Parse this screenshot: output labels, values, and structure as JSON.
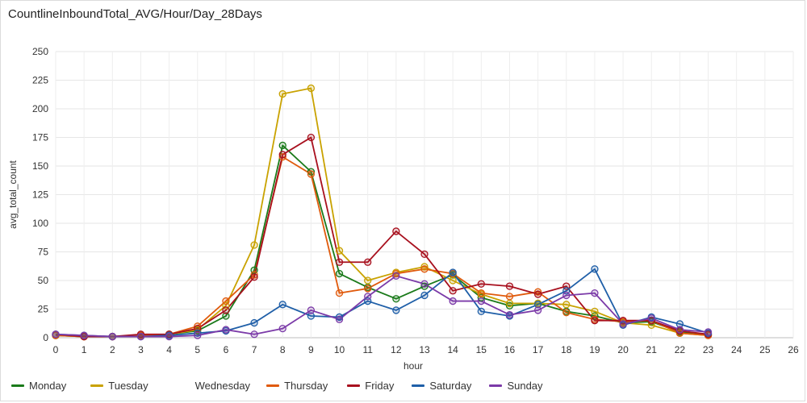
{
  "chart_data": {
    "type": "line",
    "title": "CountlineInboundTotal_AVG/Hour/Day_28Days",
    "xlabel": "hour",
    "ylabel": "avg_total_count",
    "xlim": [
      0,
      26
    ],
    "ylim": [
      0,
      250
    ],
    "x_ticks": [
      0,
      1,
      2,
      3,
      4,
      5,
      6,
      7,
      8,
      9,
      10,
      11,
      12,
      13,
      14,
      15,
      16,
      17,
      18,
      19,
      20,
      21,
      22,
      23,
      24,
      25,
      26
    ],
    "y_ticks": [
      0,
      25,
      50,
      75,
      100,
      125,
      150,
      175,
      200,
      225,
      250
    ],
    "grid": true,
    "legend_position": "bottom-left",
    "series": [
      {
        "name": "Monday",
        "color": "#1a7a1a",
        "x": [
          0,
          1,
          2,
          3,
          4,
          5,
          6,
          7,
          8,
          9,
          10,
          11,
          12,
          13,
          14,
          15,
          16,
          17,
          18,
          19,
          20,
          21,
          22,
          23
        ],
        "y": [
          2,
          1,
          1,
          2,
          3,
          6,
          19,
          59,
          168,
          145,
          56,
          44,
          34,
          45,
          55,
          35,
          28,
          30,
          23,
          19,
          13,
          14,
          5,
          3
        ]
      },
      {
        "name": "Tuesday",
        "color": "#c9a200",
        "x": [
          0,
          1,
          2,
          3,
          4,
          5,
          6,
          7,
          8,
          9,
          10,
          11,
          12,
          13,
          14,
          15,
          16,
          17,
          18,
          19,
          20,
          21,
          22,
          23
        ],
        "y": [
          2,
          1,
          1,
          2,
          3,
          7,
          28,
          81,
          213,
          218,
          76,
          50,
          57,
          62,
          50,
          38,
          30,
          30,
          29,
          23,
          13,
          11,
          4,
          2
        ]
      },
      {
        "name": "Wednesday",
        "color": "#ffffff",
        "x": [],
        "y": []
      },
      {
        "name": "Thursday",
        "color": "#e05a0c",
        "x": [
          0,
          1,
          2,
          3,
          4,
          5,
          6,
          7,
          8,
          9,
          10,
          11,
          12,
          13,
          14,
          15,
          16,
          17,
          18,
          19,
          20,
          21,
          22,
          23
        ],
        "y": [
          2,
          1,
          1,
          2,
          3,
          10,
          32,
          55,
          158,
          143,
          39,
          43,
          56,
          60,
          56,
          39,
          36,
          40,
          22,
          16,
          14,
          15,
          4,
          2
        ]
      },
      {
        "name": "Friday",
        "color": "#a8101e",
        "x": [
          0,
          1,
          2,
          3,
          4,
          5,
          6,
          7,
          8,
          9,
          10,
          11,
          12,
          13,
          14,
          15,
          16,
          17,
          18,
          19,
          20,
          21,
          22,
          23
        ],
        "y": [
          3,
          1,
          1,
          3,
          3,
          8,
          24,
          53,
          160,
          175,
          66,
          66,
          93,
          73,
          41,
          47,
          45,
          38,
          45,
          15,
          15,
          15,
          6,
          3
        ]
      },
      {
        "name": "Saturday",
        "color": "#1f5fa8",
        "x": [
          0,
          1,
          2,
          3,
          4,
          5,
          6,
          7,
          8,
          9,
          10,
          11,
          12,
          13,
          14,
          15,
          16,
          17,
          18,
          19,
          20,
          21,
          22,
          23
        ],
        "y": [
          3,
          2,
          1,
          1,
          2,
          4,
          6,
          13,
          29,
          19,
          18,
          32,
          24,
          37,
          57,
          23,
          19,
          29,
          41,
          60,
          11,
          18,
          12,
          4
        ]
      },
      {
        "name": "Sunday",
        "color": "#7b3aa8",
        "x": [
          0,
          1,
          2,
          3,
          4,
          5,
          6,
          7,
          8,
          9,
          10,
          11,
          12,
          13,
          14,
          15,
          16,
          17,
          18,
          19,
          20,
          21,
          22,
          23
        ],
        "y": [
          3,
          2,
          1,
          1,
          1,
          2,
          7,
          3,
          8,
          24,
          16,
          36,
          54,
          47,
          32,
          32,
          20,
          24,
          37,
          39,
          12,
          17,
          7,
          5
        ]
      }
    ]
  }
}
